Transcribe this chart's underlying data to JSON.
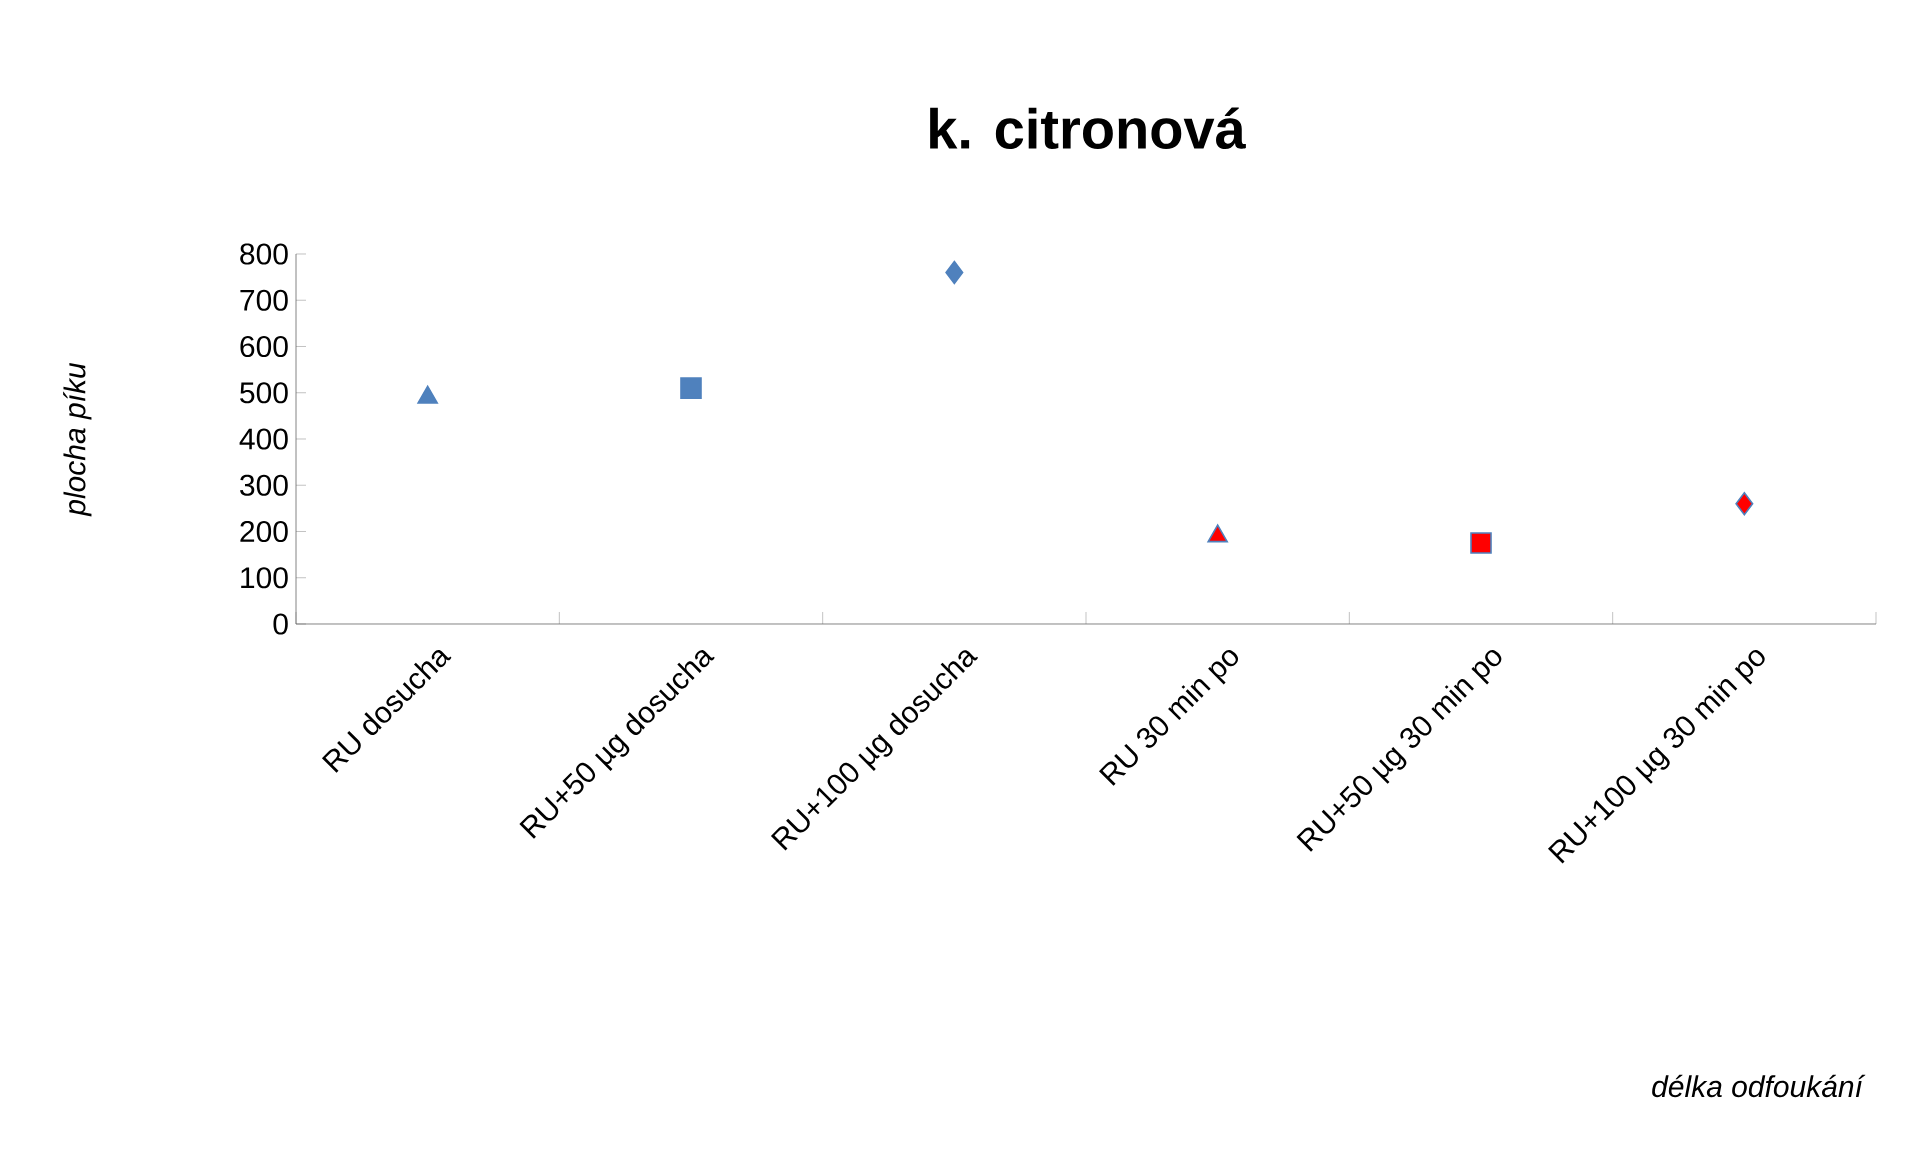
{
  "chart_data": {
    "type": "scatter",
    "title": "k. citronová",
    "annotations": [
      "délka odfoukání"
    ],
    "ylabel": "plocha píku",
    "categories": [
      "RU dosucha",
      "RU+50 µg dosucha",
      "RU+100 µg dosucha",
      "RU 30 min po",
      "RU+50 µg 30 min po",
      "RU+100 µg 30 min po"
    ],
    "series": [
      {
        "color": "#4f81bd",
        "marker": "triangle",
        "values": [
          490,
          null,
          null,
          null,
          null,
          null
        ]
      },
      {
        "color": "#4f81bd",
        "marker": "square",
        "values": [
          null,
          510,
          null,
          null,
          null,
          null
        ]
      },
      {
        "color": "#4f81bd",
        "marker": "diamond",
        "values": [
          null,
          null,
          760,
          null,
          null,
          null
        ]
      },
      {
        "color": "#ff0000",
        "marker": "triangle",
        "values": [
          null,
          null,
          null,
          190,
          null,
          null
        ]
      },
      {
        "color": "#ff0000",
        "marker": "square",
        "values": [
          null,
          null,
          null,
          null,
          175,
          null
        ]
      },
      {
        "color": "#ff0000",
        "marker": "diamond",
        "values": [
          null,
          null,
          null,
          null,
          null,
          260
        ]
      }
    ],
    "ylim": [
      0,
      800
    ],
    "yticks": [
      0,
      100,
      200,
      300,
      400,
      500,
      600,
      700,
      800
    ],
    "grid": false
  }
}
